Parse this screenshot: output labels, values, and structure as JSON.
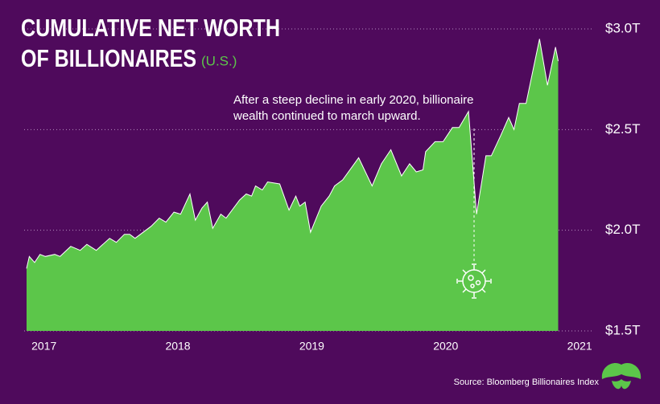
{
  "chart_data": {
    "type": "area",
    "title": [
      "CUMULATIVE NET WORTH",
      "OF BILLIONAIRES"
    ],
    "subtitle": "(U.S.)",
    "annotation": [
      "After a steep decline in early 2020, billionaire",
      "wealth continued to march upward."
    ],
    "source": "Source: Bloomberg Billionaires Index",
    "color": "#5cc64a",
    "grid": true,
    "x": [
      2016.87,
      2016.89,
      2016.93,
      2016.97,
      2017.01,
      2017.08,
      2017.12,
      2017.2,
      2017.27,
      2017.32,
      2017.39,
      2017.49,
      2017.54,
      2017.6,
      2017.64,
      2017.68,
      2017.8,
      2017.86,
      2017.91,
      2017.97,
      2018.02,
      2018.09,
      2018.13,
      2018.18,
      2018.22,
      2018.26,
      2018.32,
      2018.36,
      2018.46,
      2018.51,
      2018.55,
      2018.58,
      2018.63,
      2018.67,
      2018.76,
      2018.83,
      2018.88,
      2018.91,
      2018.95,
      2018.99,
      2019.07,
      2019.13,
      2019.17,
      2019.23,
      2019.35,
      2019.45,
      2019.52,
      2019.59,
      2019.67,
      2019.73,
      2019.78,
      2019.83,
      2019.85,
      2019.92,
      2019.98,
      2020.05,
      2020.1,
      2020.17,
      2020.23,
      2020.3,
      2020.34,
      2020.41,
      2020.47,
      2020.51,
      2020.55,
      2020.6,
      2020.7,
      2020.76,
      2020.82,
      2020.84
    ],
    "values": [
      1.81,
      1.87,
      1.84,
      1.88,
      1.87,
      1.88,
      1.87,
      1.92,
      1.9,
      1.93,
      1.9,
      1.96,
      1.94,
      1.98,
      1.98,
      1.96,
      2.02,
      2.06,
      2.04,
      2.09,
      2.08,
      2.18,
      2.05,
      2.11,
      2.14,
      2.01,
      2.08,
      2.06,
      2.15,
      2.18,
      2.17,
      2.22,
      2.2,
      2.24,
      2.23,
      2.1,
      2.17,
      2.12,
      2.14,
      1.99,
      2.12,
      2.17,
      2.22,
      2.25,
      2.36,
      2.22,
      2.33,
      2.4,
      2.27,
      2.33,
      2.29,
      2.3,
      2.39,
      2.44,
      2.44,
      2.51,
      2.51,
      2.59,
      2.08,
      2.37,
      2.37,
      2.47,
      2.56,
      2.5,
      2.63,
      2.63,
      2.95,
      2.72,
      2.91,
      2.84
    ],
    "xlim": [
      2016.8,
      2021.1
    ],
    "xticks": [
      2017,
      2018,
      2019,
      2020,
      2021
    ],
    "ylim": [
      1.5,
      3.0
    ],
    "yticks": [
      {
        "value": 1.5,
        "label": "$1.5T"
      },
      {
        "value": 2.0,
        "label": "$2.0T"
      },
      {
        "value": 2.5,
        "label": "$2.5T"
      },
      {
        "value": 3.0,
        "label": "$3.0T"
      }
    ]
  }
}
